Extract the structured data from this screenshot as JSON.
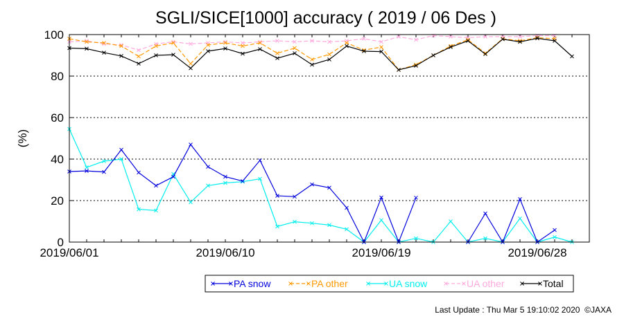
{
  "chart_data": {
    "type": "line",
    "title": "SGLI/SICE[1000] accuracy ( 2019 / 06 Des )",
    "ylabel": "(%)",
    "xlabel": "",
    "ylim": [
      0,
      100
    ],
    "yticks": [
      0,
      20,
      40,
      60,
      80,
      100
    ],
    "xlim": [
      1,
      31
    ],
    "xticks": [
      {
        "day": 1,
        "label": "2019/06/01"
      },
      {
        "day": 10,
        "label": "2019/06/10"
      },
      {
        "day": 19,
        "label": "2019/06/19"
      },
      {
        "day": 28,
        "label": "2019/06/28"
      }
    ],
    "grid": "horizontal dotted",
    "legend_position": "bottom",
    "x": [
      "2019/06/01",
      "2019/06/02",
      "2019/06/03",
      "2019/06/04",
      "2019/06/05",
      "2019/06/06",
      "2019/06/07",
      "2019/06/08",
      "2019/06/09",
      "2019/06/10",
      "2019/06/11",
      "2019/06/12",
      "2019/06/13",
      "2019/06/14",
      "2019/06/15",
      "2019/06/16",
      "2019/06/17",
      "2019/06/18",
      "2019/06/19",
      "2019/06/20",
      "2019/06/21",
      "2019/06/22",
      "2019/06/23",
      "2019/06/24",
      "2019/06/25",
      "2019/06/26",
      "2019/06/27",
      "2019/06/28",
      "2019/06/29",
      "2019/06/30"
    ],
    "series": [
      {
        "name": "PA snow",
        "color": "#0000dd",
        "values": [
          34,
          34.3,
          33.8,
          44.5,
          33.5,
          27.2,
          31.5,
          47,
          36.3,
          31.5,
          29.4,
          39.4,
          22.3,
          21.9,
          27.8,
          26.2,
          16.5,
          0,
          21.5,
          0,
          21.4,
          null,
          null,
          0,
          13.8,
          0,
          20.7,
          0,
          5.8,
          null
        ]
      },
      {
        "name": "PA other",
        "color": "#ff9900",
        "values": [
          98,
          96.5,
          96,
          94.5,
          89.5,
          94.5,
          96,
          86,
          95,
          96,
          94.5,
          96,
          91,
          93.5,
          88,
          90.5,
          96,
          92.5,
          94,
          83,
          85.5,
          90,
          94.5,
          97.5,
          91,
          98,
          97,
          98.5,
          98,
          null
        ]
      },
      {
        "name": "UA snow",
        "color": "#00eeee",
        "values": [
          54.5,
          36,
          39,
          40,
          15.8,
          15.2,
          32.8,
          19.2,
          27.2,
          28.5,
          29.1,
          30.5,
          7.5,
          9.8,
          9.1,
          8.2,
          6.2,
          0,
          10.6,
          0,
          1.8,
          0,
          10,
          0,
          1.8,
          0,
          11.4,
          0,
          2.4,
          0
        ]
      },
      {
        "name": "UA other",
        "color": "#ffaadd",
        "values": [
          96.5,
          97,
          95.5,
          95,
          92.5,
          95.5,
          96.5,
          95.5,
          96,
          96.5,
          96,
          96.5,
          97,
          96.5,
          97,
          96.5,
          97,
          98,
          96.5,
          99,
          97.5,
          99.5,
          99,
          98.5,
          99,
          99,
          99,
          99.5,
          99.5,
          null
        ]
      },
      {
        "name": "Total",
        "color": "#000000",
        "values": [
          93.5,
          93.2,
          91.3,
          89.7,
          86,
          90,
          90.3,
          83.8,
          92,
          93.3,
          90.8,
          93,
          88.6,
          91,
          85.5,
          88,
          94.5,
          92,
          91.8,
          83,
          85,
          90,
          94,
          97,
          90.6,
          97.8,
          96.5,
          98.2,
          97,
          89.5
        ]
      }
    ]
  },
  "footer": {
    "update_text": "Last Update : Thu Mar  5 19:10:02 2020",
    "copyright": "©JAXA"
  }
}
